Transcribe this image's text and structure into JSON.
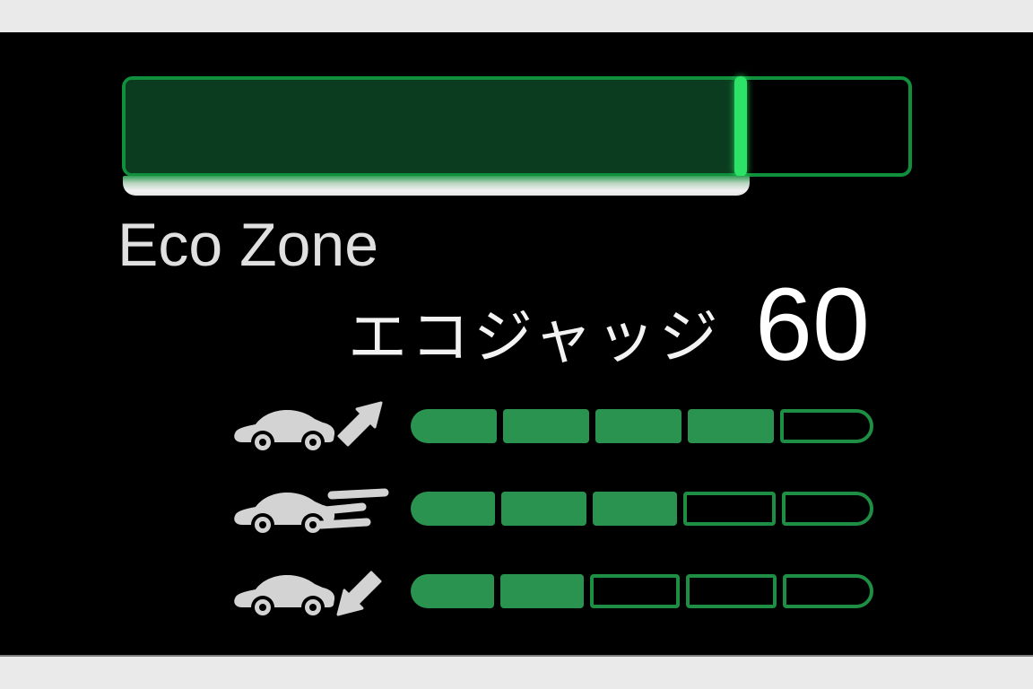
{
  "display": {
    "eco_zone": {
      "label": "Eco Zone",
      "progress_percent": 78
    },
    "eco_judge": {
      "label": "エコジャッジ",
      "score": "60"
    },
    "meters": {
      "segments_total": 5,
      "rows": [
        {
          "id": "acceleration",
          "icon": "car-accelerate-icon",
          "filled": 4
        },
        {
          "id": "cruise",
          "icon": "car-cruise-icon",
          "filled": 3
        },
        {
          "id": "deceleration",
          "icon": "car-decelerate-icon",
          "filled": 2
        }
      ]
    }
  },
  "colors": {
    "letterbox": "#eaeaea",
    "screen_background": "#000000",
    "gauge_border": "#10903d",
    "gauge_fill": "#0b3c1f",
    "gauge_marker": "#2de367",
    "shelf_highlight": "#f2f2f2",
    "segment_filled": "#2a9350",
    "segment_outline": "#1e8e44",
    "icon_gray": "#d3d3d3",
    "label_gray": "#e0e0e0",
    "score_white": "#ffffff"
  }
}
